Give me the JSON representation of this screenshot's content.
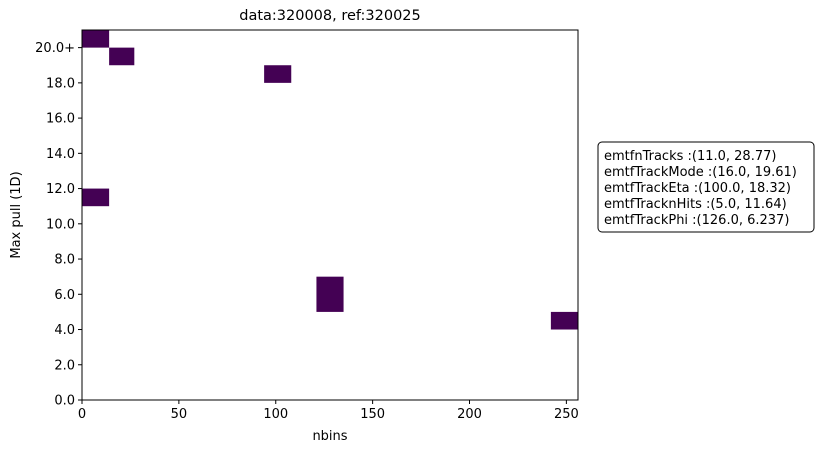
{
  "chart_data": {
    "type": "heatmap",
    "title": "data:320008, ref:320025",
    "xlabel": "nbins",
    "ylabel": "Max pull (1D)",
    "xlim": [
      0,
      256
    ],
    "ylim": [
      0,
      21
    ],
    "xticks": [
      {
        "value": 0,
        "label": "0"
      },
      {
        "value": 50,
        "label": "50"
      },
      {
        "value": 100,
        "label": "100"
      },
      {
        "value": 150,
        "label": "150"
      },
      {
        "value": 200,
        "label": "200"
      },
      {
        "value": 250,
        "label": "250"
      }
    ],
    "yticks": [
      {
        "value": 0,
        "label": "0.0"
      },
      {
        "value": 2,
        "label": "2.0"
      },
      {
        "value": 4,
        "label": "4.0"
      },
      {
        "value": 6,
        "label": "6.0"
      },
      {
        "value": 8,
        "label": "8.0"
      },
      {
        "value": 10,
        "label": "10.0"
      },
      {
        "value": 12,
        "label": "12.0"
      },
      {
        "value": 14,
        "label": "14.0"
      },
      {
        "value": 16,
        "label": "16.0"
      },
      {
        "value": 18,
        "label": "18.0"
      },
      {
        "value": 20,
        "label": "20.0+"
      }
    ],
    "cells": [
      {
        "x0": 0,
        "x1": 14,
        "y0": 20,
        "y1": 21
      },
      {
        "x0": 14,
        "x1": 27,
        "y0": 19,
        "y1": 20
      },
      {
        "x0": 94,
        "x1": 108,
        "y0": 18,
        "y1": 19
      },
      {
        "x0": 0,
        "x1": 14,
        "y0": 11,
        "y1": 12
      },
      {
        "x0": 121,
        "x1": 135,
        "y0": 5,
        "y1": 7
      },
      {
        "x0": 242,
        "x1": 256,
        "y0": 4,
        "y1": 5
      }
    ],
    "cell_color": "#440154",
    "grid": false,
    "legend_position": "right",
    "legend": [
      "emtfnTracks :(11.0, 28.77)",
      "emtfTrackMode :(16.0, 19.61)",
      "emtfTrackEta :(100.0, 18.32)",
      "emtfTracknHits :(5.0, 11.64)",
      "emtfTrackPhi :(126.0, 6.237)"
    ]
  }
}
